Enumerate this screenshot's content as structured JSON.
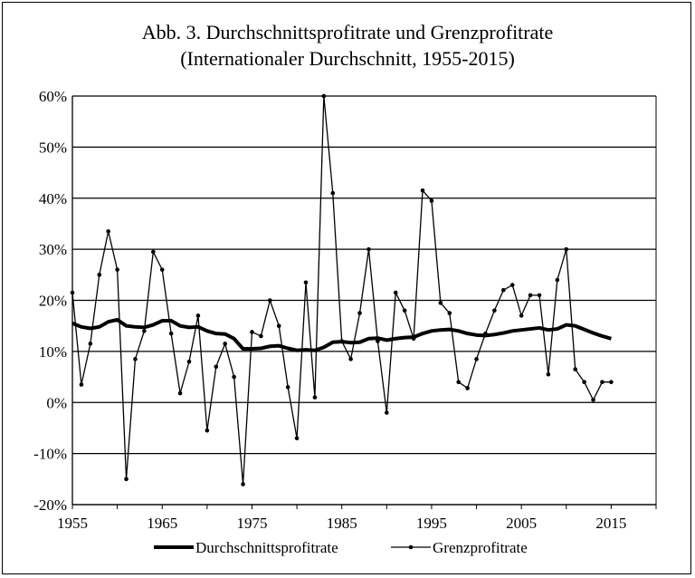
{
  "chart_data": {
    "type": "line",
    "title": "Abb. 3. Durchschnittsprofitrate und Grenzprofitrate",
    "subtitle": "(Internationaler Durchschnitt, 1955-2015)",
    "xlabel": "",
    "ylabel": "",
    "xlim": [
      1955,
      2020
    ],
    "ylim": [
      -20,
      60
    ],
    "x_ticks": [
      1955,
      1965,
      1975,
      1985,
      1995,
      2005,
      2015
    ],
    "x_tick_labels": [
      "1955",
      "1965",
      "1975",
      "1985",
      "1995",
      "2005",
      "2015"
    ],
    "y_ticks": [
      -20,
      -10,
      0,
      10,
      20,
      30,
      40,
      50,
      60
    ],
    "y_tick_labels": [
      "-20%",
      "-10%",
      "0%",
      "10%",
      "20%",
      "30%",
      "40%",
      "50%",
      "60%"
    ],
    "grid": "horizontal",
    "legend_position": "bottom",
    "x": [
      1955,
      1956,
      1957,
      1958,
      1959,
      1960,
      1961,
      1962,
      1963,
      1964,
      1965,
      1966,
      1967,
      1968,
      1969,
      1970,
      1971,
      1972,
      1973,
      1974,
      1975,
      1976,
      1977,
      1978,
      1979,
      1980,
      1981,
      1982,
      1983,
      1984,
      1985,
      1986,
      1987,
      1988,
      1989,
      1990,
      1991,
      1992,
      1993,
      1994,
      1995,
      1996,
      1997,
      1998,
      1999,
      2000,
      2001,
      2002,
      2003,
      2004,
      2005,
      2006,
      2007,
      2008,
      2009,
      2010,
      2011,
      2012,
      2013,
      2014,
      2015
    ],
    "series": [
      {
        "name": "Durchschnittsprofitrate",
        "style": "thick-line",
        "color": "#000000",
        "values": [
          15.5,
          14.8,
          14.5,
          14.8,
          15.8,
          16.2,
          15.0,
          14.8,
          14.7,
          15.2,
          16.0,
          16.0,
          15.0,
          14.7,
          14.8,
          14.0,
          13.5,
          13.4,
          12.5,
          10.5,
          10.5,
          10.6,
          11.0,
          11.1,
          10.6,
          10.2,
          10.3,
          10.2,
          10.8,
          11.8,
          11.9,
          11.7,
          11.8,
          12.5,
          12.6,
          12.2,
          12.5,
          12.7,
          12.8,
          13.5,
          14.0,
          14.2,
          14.3,
          14.0,
          13.5,
          13.2,
          13.1,
          13.3,
          13.6,
          14.0,
          14.2,
          14.4,
          14.6,
          14.2,
          14.4,
          15.2,
          15.0,
          14.3,
          13.6,
          13.0,
          12.5
        ]
      },
      {
        "name": "Grenzprofitrate",
        "style": "thin-line-markers",
        "color": "#000000",
        "values": [
          21.5,
          3.5,
          11.5,
          25.0,
          33.5,
          26.0,
          -15.0,
          8.5,
          14.0,
          29.5,
          26.0,
          13.5,
          1.8,
          8.0,
          17.0,
          -5.5,
          7.0,
          11.5,
          5.0,
          -16.0,
          13.8,
          13.0,
          20.0,
          15.0,
          3.0,
          -7.0,
          23.5,
          1.0,
          60.0,
          41.0,
          12.0,
          8.5,
          17.5,
          30.0,
          12.0,
          -2.0,
          21.5,
          18.0,
          12.5,
          41.5,
          39.5,
          19.5,
          17.5,
          4.0,
          2.8,
          8.5,
          13.5,
          18.0,
          22.0,
          23.0,
          17.0,
          21.0,
          21.0,
          5.5,
          24.0,
          30.0,
          6.5,
          4.0,
          0.5,
          4.0,
          4.0
        ]
      }
    ]
  }
}
